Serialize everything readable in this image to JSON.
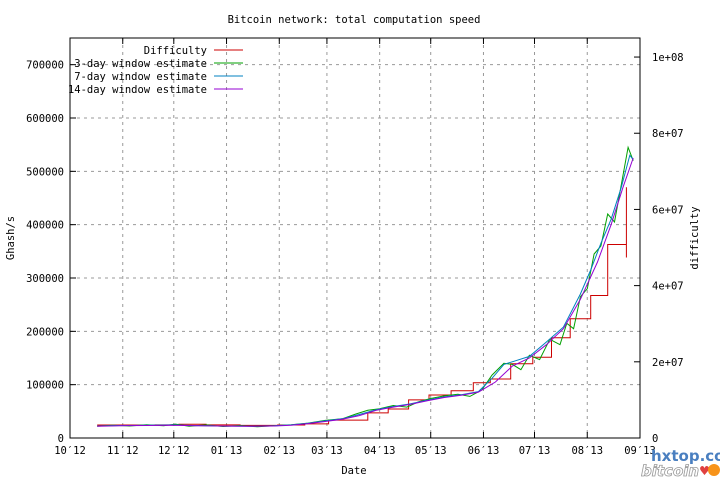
{
  "chart_data": {
    "type": "line",
    "title": "Bitcoin network: total computation speed",
    "xlabel": "Date",
    "ylabel": "Ghash/s",
    "y2label": "difficulty",
    "x_unit": "days since 2012-10-01",
    "xlim": [
      0,
      335
    ],
    "ylim": [
      0,
      750000
    ],
    "y2lim": [
      0,
      105000000
    ],
    "grid": true,
    "legend_position": "top-left",
    "x_ticks": [
      {
        "day": 0,
        "label": "10′12"
      },
      {
        "day": 31,
        "label": "11′12"
      },
      {
        "day": 61,
        "label": "12′12"
      },
      {
        "day": 92,
        "label": "01′13"
      },
      {
        "day": 123,
        "label": "02′13"
      },
      {
        "day": 151,
        "label": "03′13"
      },
      {
        "day": 182,
        "label": "04′13"
      },
      {
        "day": 212,
        "label": "05′13"
      },
      {
        "day": 243,
        "label": "06′13"
      },
      {
        "day": 273,
        "label": "07′13"
      },
      {
        "day": 304,
        "label": "08′13"
      },
      {
        "day": 335,
        "label": "09′13"
      }
    ],
    "y_ticks": [
      {
        "value": 0,
        "label": "0"
      },
      {
        "value": 100000,
        "label": "100000"
      },
      {
        "value": 200000,
        "label": "200000"
      },
      {
        "value": 300000,
        "label": "300000"
      },
      {
        "value": 400000,
        "label": "400000"
      },
      {
        "value": 500000,
        "label": "500000"
      },
      {
        "value": 600000,
        "label": "600000"
      },
      {
        "value": 700000,
        "label": "700000"
      }
    ],
    "y2_ticks": [
      {
        "value": 0,
        "label": "0"
      },
      {
        "value": 20000000,
        "label": "2e+07"
      },
      {
        "value": 40000000,
        "label": "4e+07"
      },
      {
        "value": 60000000,
        "label": "6e+07"
      },
      {
        "value": 80000000,
        "label": "8e+07"
      },
      {
        "value": 100000000,
        "label": "1e+08"
      }
    ],
    "series": [
      {
        "name": "Difficulty",
        "color": "#cc0000",
        "axis": "y2",
        "step": true,
        "points": [
          [
            16,
            3400000
          ],
          [
            50,
            3450000
          ],
          [
            64,
            3600000
          ],
          [
            80,
            3450000
          ],
          [
            100,
            3300000
          ],
          [
            122,
            3400000
          ],
          [
            138,
            3700000
          ],
          [
            152,
            4700000
          ],
          [
            175,
            6600000
          ],
          [
            187,
            7600000
          ],
          [
            199,
            10000000
          ],
          [
            211,
            11300000
          ],
          [
            224,
            12400000
          ],
          [
            237,
            14500000
          ],
          [
            247,
            15500000
          ],
          [
            259,
            19500000
          ],
          [
            272,
            21200000
          ],
          [
            283,
            26300000
          ],
          [
            294,
            31300000
          ],
          [
            306,
            37400000
          ],
          [
            316,
            50800000
          ],
          [
            327,
            65800000
          ],
          [
            327,
            65800000
          ]
        ]
      },
      {
        "name": "3-day window estimate",
        "color": "#00a000",
        "axis": "y",
        "points": [
          [
            16,
            22000
          ],
          [
            25,
            24000
          ],
          [
            35,
            22500
          ],
          [
            45,
            25000
          ],
          [
            55,
            23000
          ],
          [
            62,
            26000
          ],
          [
            70,
            22000
          ],
          [
            80,
            24500
          ],
          [
            90,
            21500
          ],
          [
            100,
            23500
          ],
          [
            110,
            21000
          ],
          [
            120,
            23000
          ],
          [
            130,
            25000
          ],
          [
            140,
            28000
          ],
          [
            150,
            33000
          ],
          [
            160,
            36000
          ],
          [
            168,
            45000
          ],
          [
            175,
            52000
          ],
          [
            182,
            55000
          ],
          [
            190,
            61000
          ],
          [
            198,
            58000
          ],
          [
            205,
            68000
          ],
          [
            212,
            74000
          ],
          [
            220,
            79000
          ],
          [
            228,
            82000
          ],
          [
            235,
            78000
          ],
          [
            242,
            90000
          ],
          [
            248,
            118000
          ],
          [
            255,
            140000
          ],
          [
            260,
            138000
          ],
          [
            265,
            128000
          ],
          [
            270,
            155000
          ],
          [
            276,
            147000
          ],
          [
            282,
            185000
          ],
          [
            288,
            175000
          ],
          [
            292,
            215000
          ],
          [
            296,
            205000
          ],
          [
            300,
            265000
          ],
          [
            304,
            280000
          ],
          [
            308,
            345000
          ],
          [
            312,
            360000
          ],
          [
            316,
            420000
          ],
          [
            320,
            405000
          ],
          [
            324,
            475000
          ],
          [
            328,
            545000
          ],
          [
            331,
            520000
          ]
        ]
      },
      {
        "name": "7-day window estimate",
        "color": "#0080c0",
        "axis": "y",
        "points": [
          [
            16,
            22500
          ],
          [
            30,
            23500
          ],
          [
            45,
            23800
          ],
          [
            60,
            24500
          ],
          [
            75,
            23200
          ],
          [
            90,
            22300
          ],
          [
            105,
            22200
          ],
          [
            120,
            22800
          ],
          [
            130,
            24500
          ],
          [
            140,
            27500
          ],
          [
            150,
            32000
          ],
          [
            160,
            36000
          ],
          [
            170,
            44000
          ],
          [
            180,
            53000
          ],
          [
            190,
            59000
          ],
          [
            200,
            64000
          ],
          [
            210,
            71000
          ],
          [
            220,
            77000
          ],
          [
            230,
            81000
          ],
          [
            240,
            87000
          ],
          [
            248,
            112000
          ],
          [
            255,
            138000
          ],
          [
            262,
            145000
          ],
          [
            270,
            153000
          ],
          [
            280,
            180000
          ],
          [
            290,
            208000
          ],
          [
            300,
            270000
          ],
          [
            306,
            315000
          ],
          [
            312,
            365000
          ],
          [
            318,
            410000
          ],
          [
            324,
            470000
          ],
          [
            329,
            530000
          ],
          [
            331,
            522000
          ]
        ]
      },
      {
        "name": "14-day window estimate",
        "color": "#9400d3",
        "axis": "y",
        "points": [
          [
            16,
            22000
          ],
          [
            30,
            23000
          ],
          [
            45,
            23500
          ],
          [
            60,
            24000
          ],
          [
            75,
            23000
          ],
          [
            90,
            22500
          ],
          [
            105,
            22000
          ],
          [
            120,
            22500
          ],
          [
            130,
            24000
          ],
          [
            140,
            27000
          ],
          [
            150,
            31000
          ],
          [
            160,
            35000
          ],
          [
            170,
            42000
          ],
          [
            180,
            52000
          ],
          [
            190,
            58000
          ],
          [
            200,
            63000
          ],
          [
            210,
            70000
          ],
          [
            220,
            76000
          ],
          [
            230,
            80000
          ],
          [
            240,
            86000
          ],
          [
            250,
            105000
          ],
          [
            260,
            135000
          ],
          [
            270,
            150000
          ],
          [
            280,
            175000
          ],
          [
            290,
            205000
          ],
          [
            300,
            260000
          ],
          [
            310,
            330000
          ],
          [
            318,
            400000
          ],
          [
            325,
            470000
          ],
          [
            331,
            525000
          ]
        ]
      }
    ]
  },
  "watermark": {
    "site": "hxtop.com",
    "text": "bitcoin"
  }
}
